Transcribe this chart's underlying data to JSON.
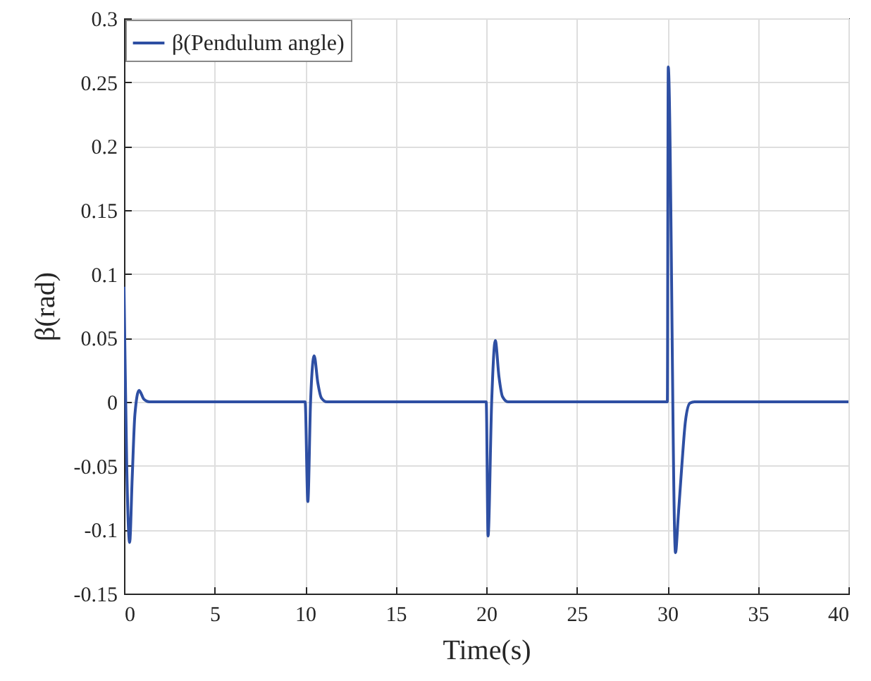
{
  "chart_data": {
    "type": "line",
    "xlabel": "Time(s)",
    "ylabel": "β(rad)",
    "xlim": [
      0,
      40
    ],
    "xticks": [
      0,
      5,
      10,
      15,
      20,
      25,
      30,
      35,
      40
    ],
    "ylim": [
      -0.15,
      0.3
    ],
    "yticks": [
      -0.15,
      -0.1,
      -0.05,
      0,
      0.05,
      0.1,
      0.15,
      0.2,
      0.25,
      0.3
    ],
    "grid": true,
    "legend": "top left",
    "series": [
      {
        "name": "β(Pendulum angle)",
        "color": "#2e4fa3",
        "x": [
          0,
          0.05,
          0.15,
          0.31,
          0.45,
          0.6,
          0.83,
          1.1,
          1.4,
          10,
          10.15,
          10.3,
          10.5,
          10.7,
          10.9,
          11.2,
          20,
          20.1,
          20.3,
          20.5,
          20.7,
          20.9,
          21.2,
          30,
          30.05,
          30.45,
          30.6,
          30.8,
          31,
          31.25,
          31.5,
          40
        ],
        "values": [
          0.09,
          0.04,
          -0.05,
          -0.11,
          -0.06,
          -0.01,
          0.009,
          0.002,
          0,
          0,
          -0.078,
          0,
          0.036,
          0.015,
          0.003,
          0,
          0,
          -0.105,
          0,
          0.048,
          0.02,
          0.004,
          0,
          0,
          0.262,
          -0.118,
          -0.09,
          -0.05,
          -0.015,
          -0.001,
          0,
          0
        ]
      }
    ]
  }
}
